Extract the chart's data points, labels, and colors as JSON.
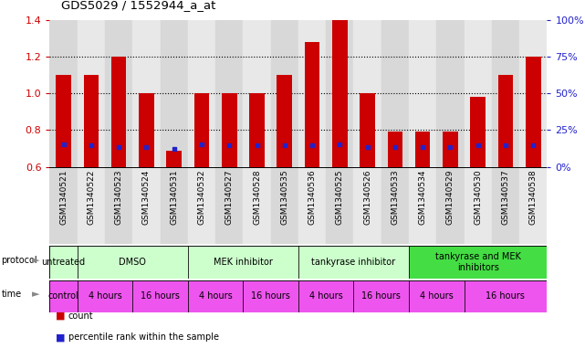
{
  "title": "GDS5029 / 1552944_a_at",
  "samples": [
    "GSM1340521",
    "GSM1340522",
    "GSM1340523",
    "GSM1340524",
    "GSM1340531",
    "GSM1340532",
    "GSM1340527",
    "GSM1340528",
    "GSM1340535",
    "GSM1340536",
    "GSM1340525",
    "GSM1340526",
    "GSM1340533",
    "GSM1340534",
    "GSM1340529",
    "GSM1340530",
    "GSM1340537",
    "GSM1340538"
  ],
  "red_values": [
    1.1,
    1.1,
    1.2,
    1.0,
    0.69,
    1.0,
    1.0,
    1.0,
    1.1,
    1.28,
    1.4,
    1.0,
    0.79,
    0.79,
    0.79,
    0.98,
    1.1,
    1.2
  ],
  "blue_values": [
    0.725,
    0.72,
    0.71,
    0.71,
    0.698,
    0.725,
    0.718,
    0.718,
    0.718,
    0.718,
    0.725,
    0.71,
    0.708,
    0.708,
    0.71,
    0.718,
    0.718,
    0.718
  ],
  "ymin": 0.6,
  "ymax": 1.4,
  "y_ticks_left": [
    0.6,
    0.8,
    1.0,
    1.2,
    1.4
  ],
  "y_ticks_right_pct": [
    0,
    25,
    50,
    75,
    100
  ],
  "dotted_lines": [
    0.8,
    1.0,
    1.2
  ],
  "bar_width": 0.55,
  "red_color": "#cc0000",
  "blue_color": "#2222cc",
  "bg_color": "#ffffff",
  "col_bg_even": "#d8d8d8",
  "col_bg_odd": "#e8e8e8",
  "protocol_row": [
    {
      "label": "untreated",
      "start": 0,
      "end": 1,
      "color": "#ccffcc"
    },
    {
      "label": "DMSO",
      "start": 1,
      "end": 5,
      "color": "#ccffcc"
    },
    {
      "label": "MEK inhibitor",
      "start": 5,
      "end": 9,
      "color": "#ccffcc"
    },
    {
      "label": "tankyrase inhibitor",
      "start": 9,
      "end": 13,
      "color": "#ccffcc"
    },
    {
      "label": "tankyrase and MEK\ninhibitors",
      "start": 13,
      "end": 18,
      "color": "#44dd44"
    }
  ],
  "time_row": [
    {
      "label": "control",
      "start": 0,
      "end": 1,
      "color": "#ee55ee"
    },
    {
      "label": "4 hours",
      "start": 1,
      "end": 3,
      "color": "#ee55ee"
    },
    {
      "label": "16 hours",
      "start": 3,
      "end": 5,
      "color": "#ee55ee"
    },
    {
      "label": "4 hours",
      "start": 5,
      "end": 7,
      "color": "#ee55ee"
    },
    {
      "label": "16 hours",
      "start": 7,
      "end": 9,
      "color": "#ee55ee"
    },
    {
      "label": "4 hours",
      "start": 9,
      "end": 11,
      "color": "#ee55ee"
    },
    {
      "label": "16 hours",
      "start": 11,
      "end": 13,
      "color": "#ee55ee"
    },
    {
      "label": "4 hours",
      "start": 13,
      "end": 15,
      "color": "#ee55ee"
    },
    {
      "label": "16 hours",
      "start": 15,
      "end": 18,
      "color": "#ee55ee"
    }
  ]
}
